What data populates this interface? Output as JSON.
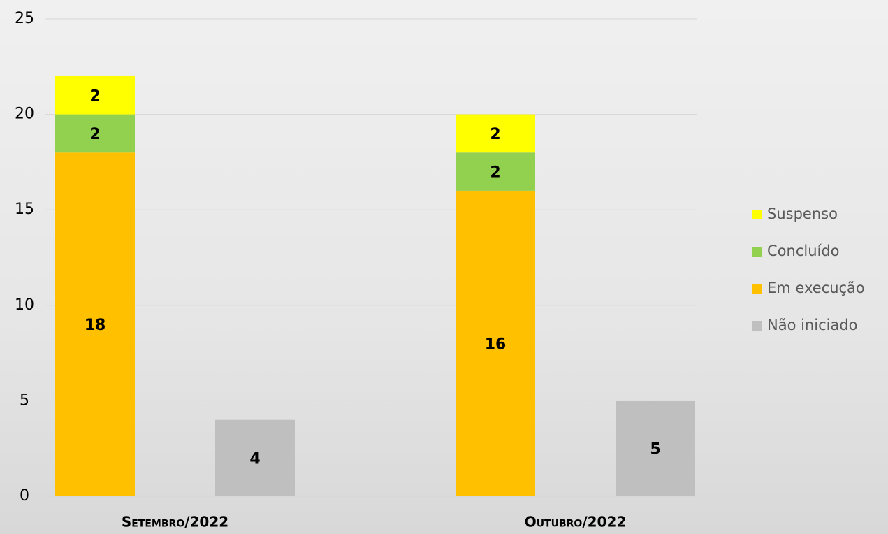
{
  "chart_data": {
    "type": "bar",
    "categories": [
      "Setembro/2022",
      "Outubro/2022"
    ],
    "series": [
      {
        "name": "Suspenso",
        "color": "#ffff00",
        "values": [
          2,
          2
        ],
        "stacked": true
      },
      {
        "name": "Concluído",
        "color": "#92d050",
        "values": [
          2,
          2
        ],
        "stacked": true
      },
      {
        "name": "Em execução",
        "color": "#ffc000",
        "values": [
          18,
          16
        ],
        "stacked": true
      },
      {
        "name": "Não iniciado",
        "color": "#bfbfbf",
        "values": [
          4,
          5
        ],
        "stacked": false
      }
    ],
    "ylim": [
      0,
      25
    ],
    "yticks": [
      0,
      5,
      10,
      15,
      20,
      25
    ],
    "grid": true
  }
}
